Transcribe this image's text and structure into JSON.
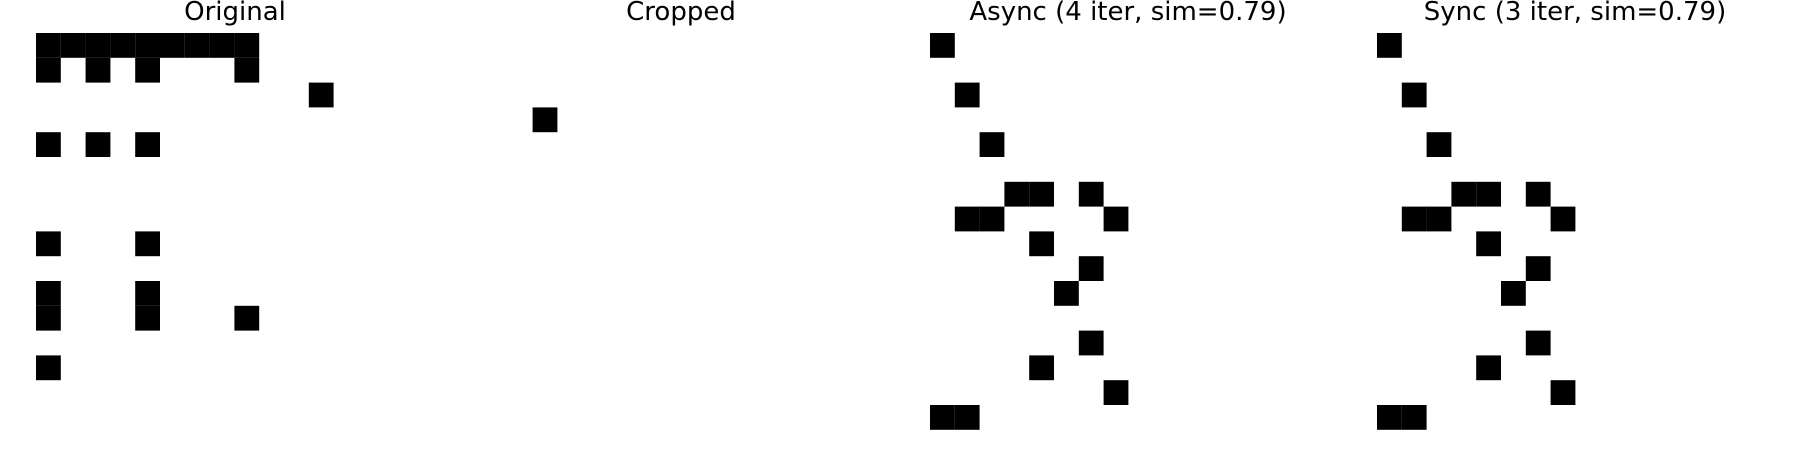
{
  "panels": [
    {
      "title": "Original",
      "grid": [
        "1111111110000000",
        "1010100010000000",
        "0000000000010000",
        "0000000000000000",
        "1010100000000000",
        "0000000000000000",
        "0000000000000000",
        "0000000000000000",
        "1000100000000000",
        "0000000000000000",
        "1000100000000000",
        "1000100010000000",
        "0000000000000000",
        "1000000000000000",
        "0000000000000000",
        "0000000000000000"
      ]
    },
    {
      "title": "Cropped",
      "grid": [
        "0000000000000000",
        "0000000000000000",
        "0000000000000000",
        "0010000000000000",
        "0000000000000000",
        "0000000000000000",
        "0000000000000000",
        "0000000000000000",
        "0000000000000000",
        "0000000000000000",
        "0000000000000000",
        "0000000000000000",
        "0000000000000000",
        "0000000000000000",
        "0000000000000000",
        "0000000000000000"
      ]
    },
    {
      "title": "Async (4 iter, sim=0.79)",
      "grid": [
        "1000000000000000",
        "0000000000000000",
        "0100000000000000",
        "0000000000000000",
        "0010000000000000",
        "0000000000000000",
        "0001101000000000",
        "0110000100000000",
        "0000100000000000",
        "0000001000000000",
        "0000010000000000",
        "0000000000000000",
        "0000001000000000",
        "0000100000000000",
        "0000000100000000",
        "1100000000000000"
      ]
    },
    {
      "title": "Sync (3 iter, sim=0.79)",
      "grid": [
        "1000000000000000",
        "0000000000000000",
        "0100000000000000",
        "0000000000000000",
        "0010000000000000",
        "0000000000000000",
        "0001101000000000",
        "0110000100000000",
        "0000100000000000",
        "0000001000000000",
        "0000010000000000",
        "0000000000000000",
        "0000001000000000",
        "0000100000000000",
        "0000000100000000",
        "1100000000000000"
      ]
    }
  ],
  "colors": {
    "on": "#000000",
    "off": "#ffffff",
    "title": "#000000"
  }
}
